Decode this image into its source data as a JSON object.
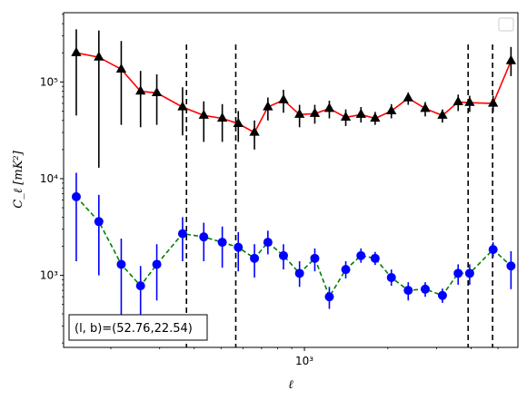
{
  "chart_data": {
    "type": "line",
    "xlabel": "ℓ",
    "ylabel": "C_ℓ  [mK²]",
    "x_scale": "log",
    "y_scale": "log",
    "xlim": [
      135,
      5900
    ],
    "ylim": [
      180,
      520000
    ],
    "x_tick_labels": [
      {
        "value": 1000,
        "label": "10³"
      }
    ],
    "y_tick_labels": [
      {
        "value": 1000,
        "label": "10³"
      },
      {
        "value": 10000,
        "label": "10⁴"
      },
      {
        "value": 100000,
        "label": "10⁵"
      }
    ],
    "legend": {
      "position": "top-right",
      "entries": []
    },
    "vlines": [
      375,
      565,
      3900,
      4780
    ],
    "annotation": "(l, b)=(52.76,22.54)",
    "series": [
      {
        "line_color": "#ff0000",
        "marker": "triangle",
        "marker_color": "#000000",
        "errorbar_color": "#000000",
        "x": [
          150,
          181,
          218,
          256,
          293,
          363,
          433,
          505,
          577,
          660,
          738,
          840,
          960,
          1090,
          1230,
          1410,
          1600,
          1800,
          2060,
          2370,
          2730,
          3150,
          3590,
          3950,
          4800,
          5570
        ],
        "y": [
          200000,
          180000,
          135000,
          80000,
          77000,
          55000,
          45000,
          42000,
          37000,
          30000,
          55000,
          65000,
          46000,
          47000,
          53000,
          43000,
          46000,
          42000,
          50000,
          68000,
          53000,
          45000,
          62000,
          61000,
          60000,
          165000
        ],
        "yerr_low": [
          45000,
          13000,
          36000,
          34000,
          36000,
          28000,
          24000,
          24000,
          24000,
          20000,
          40000,
          48000,
          34000,
          37000,
          42000,
          35000,
          38000,
          36000,
          42000,
          58000,
          44000,
          38000,
          50000,
          49000,
          49000,
          115000
        ],
        "yerr_high": [
          350000,
          340000,
          265000,
          130000,
          120000,
          88000,
          63000,
          59000,
          50000,
          40000,
          69000,
          83000,
          58000,
          58000,
          64000,
          52000,
          55000,
          49000,
          59000,
          78000,
          62000,
          52000,
          74000,
          72000,
          72000,
          230000
        ]
      },
      {
        "line_color": "#008000",
        "line_style": "dashed",
        "marker": "circle",
        "marker_color": "#0000ff",
        "errorbar_color": "#0000ff",
        "x": [
          150,
          181,
          218,
          256,
          293,
          363,
          433,
          505,
          577,
          660,
          738,
          840,
          960,
          1090,
          1230,
          1410,
          1600,
          1800,
          2060,
          2370,
          2730,
          3150,
          3590,
          3950,
          4800,
          5570
        ],
        "y": [
          6500,
          3600,
          1300,
          780,
          1300,
          2700,
          2500,
          2200,
          1950,
          1500,
          2200,
          1600,
          1050,
          1500,
          600,
          1150,
          1600,
          1500,
          950,
          700,
          720,
          620,
          1050,
          1050,
          1850,
          1250
        ],
        "yerr_low": [
          1400,
          1000,
          380,
          330,
          550,
          1400,
          1400,
          1200,
          1100,
          950,
          1650,
          1150,
          760,
          1100,
          450,
          930,
          1350,
          1280,
          780,
          550,
          600,
          520,
          800,
          800,
          1550,
          720
        ],
        "yerr_high": [
          11500,
          6800,
          2400,
          1250,
          2100,
          4000,
          3500,
          3200,
          2800,
          2100,
          2900,
          2100,
          1400,
          1900,
          760,
          1400,
          1900,
          1750,
          1150,
          850,
          850,
          730,
          1300,
          1300,
          2200,
          1780
        ]
      }
    ]
  }
}
